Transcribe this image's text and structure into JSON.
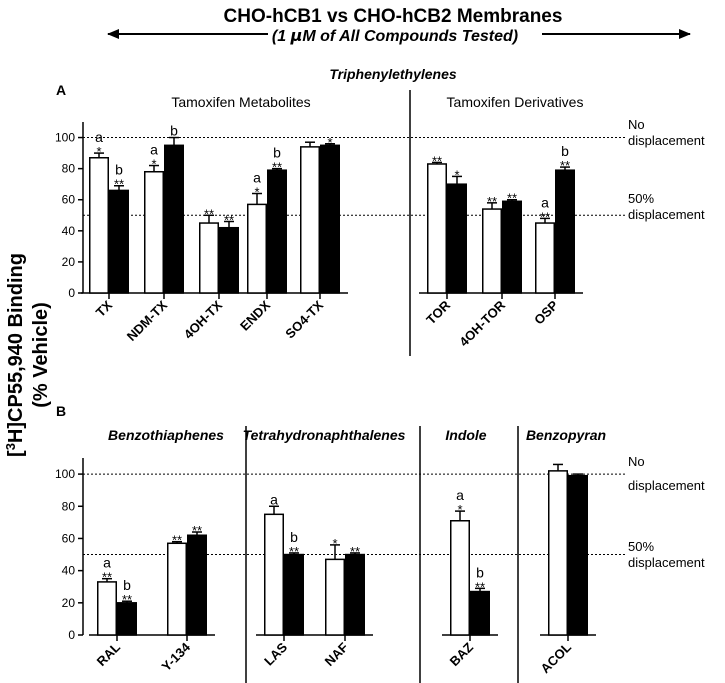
{
  "header": {
    "title": "CHO-hCB1 vs CHO-hCB2 Membranes",
    "subtitle_pre": "(1 ",
    "subtitle_mu": "μ",
    "subtitle_post": "M of All Compounds Tested)"
  },
  "yaxis": {
    "label_superscript": "3",
    "label_line1_pre": "[",
    "label_line1_post": "H]CP55,940 Binding",
    "label_line2": "(% Vehicle)"
  },
  "reference_lines": {
    "no_displacement_1": "No",
    "no_displacement_2": "displacement",
    "half_displacement_1": "50%",
    "half_displacement_2": "displacement"
  },
  "chart_data": [
    {
      "type": "bar",
      "panel_label": "A",
      "title": "Triphenylethylenes",
      "ylim": [
        0,
        110
      ],
      "yticks": [
        "0",
        "20",
        "40",
        "60",
        "80",
        "100"
      ],
      "reference_values": [
        100,
        50
      ],
      "series_styles": [
        "open",
        "filled"
      ],
      "groups": [
        {
          "name": "Tamoxifen Metabolites",
          "categories": [
            {
              "label": "TX",
              "bars": [
                {
                  "value": 87,
                  "error": 3,
                  "sig": "*",
                  "letter": "a"
                },
                {
                  "value": 66,
                  "error": 3,
                  "sig": "**",
                  "letter": "b"
                }
              ]
            },
            {
              "label": "NDM-TX",
              "bars": [
                {
                  "value": 78,
                  "error": 4,
                  "sig": "*",
                  "letter": "a"
                },
                {
                  "value": 95,
                  "error": 5,
                  "sig": "",
                  "letter": "b"
                }
              ]
            },
            {
              "label": "4OH-TX",
              "bars": [
                {
                  "value": 45,
                  "error": 5,
                  "sig": "**",
                  "letter": ""
                },
                {
                  "value": 42,
                  "error": 4,
                  "sig": "**",
                  "letter": ""
                }
              ]
            },
            {
              "label": "ENDX",
              "bars": [
                {
                  "value": 57,
                  "error": 7,
                  "sig": "*",
                  "letter": "a"
                },
                {
                  "value": 79,
                  "error": 1,
                  "sig": "**",
                  "letter": "b"
                }
              ]
            },
            {
              "label": "SO4-TX",
              "bars": [
                {
                  "value": 94,
                  "error": 3,
                  "sig": "",
                  "letter": ""
                },
                {
                  "value": 95,
                  "error": 1,
                  "sig": "*",
                  "letter": ""
                }
              ]
            }
          ]
        },
        {
          "name": "Tamoxifen Derivatives",
          "categories": [
            {
              "label": "TOR",
              "bars": [
                {
                  "value": 83,
                  "error": 1,
                  "sig": "**",
                  "letter": ""
                },
                {
                  "value": 70,
                  "error": 5,
                  "sig": "*",
                  "letter": ""
                }
              ]
            },
            {
              "label": "4OH-TOR",
              "bars": [
                {
                  "value": 54,
                  "error": 4,
                  "sig": "**",
                  "letter": ""
                },
                {
                  "value": 59,
                  "error": 1,
                  "sig": "**",
                  "letter": ""
                }
              ]
            },
            {
              "label": "OSP",
              "bars": [
                {
                  "value": 45,
                  "error": 3,
                  "sig": "**",
                  "letter": "a"
                },
                {
                  "value": 79,
                  "error": 2,
                  "sig": "**",
                  "letter": "b"
                }
              ]
            }
          ]
        }
      ]
    },
    {
      "type": "bar",
      "panel_label": "B",
      "title": "",
      "ylim": [
        0,
        110
      ],
      "yticks": [
        "0",
        "20",
        "40",
        "60",
        "80",
        "100"
      ],
      "reference_values": [
        100,
        50
      ],
      "series_styles": [
        "open",
        "filled"
      ],
      "groups": [
        {
          "name": "Benzothiaphenes",
          "categories": [
            {
              "label": "RAL",
              "bars": [
                {
                  "value": 33,
                  "error": 2,
                  "sig": "**",
                  "letter": "a"
                },
                {
                  "value": 20,
                  "error": 1,
                  "sig": "**",
                  "letter": "b"
                }
              ]
            },
            {
              "label": "Y-134",
              "bars": [
                {
                  "value": 57,
                  "error": 1,
                  "sig": "**",
                  "letter": ""
                },
                {
                  "value": 62,
                  "error": 2,
                  "sig": "**",
                  "letter": ""
                }
              ]
            }
          ]
        },
        {
          "name": "Tetrahydronaphthalenes",
          "categories": [
            {
              "label": "LAS",
              "bars": [
                {
                  "value": 75,
                  "error": 5,
                  "sig": "",
                  "letter": "a"
                },
                {
                  "value": 50,
                  "error": 1,
                  "sig": "**",
                  "letter": "b"
                }
              ]
            },
            {
              "label": "NAF",
              "bars": [
                {
                  "value": 47,
                  "error": 9,
                  "sig": "*",
                  "letter": ""
                },
                {
                  "value": 50,
                  "error": 1,
                  "sig": "**",
                  "letter": ""
                }
              ]
            }
          ]
        },
        {
          "name": "Indole",
          "categories": [
            {
              "label": "BAZ",
              "bars": [
                {
                  "value": 71,
                  "error": 6,
                  "sig": "*",
                  "letter": "a"
                },
                {
                  "value": 27,
                  "error": 2,
                  "sig": "**",
                  "letter": "b"
                }
              ]
            }
          ]
        },
        {
          "name": "Benzopyran",
          "categories": [
            {
              "label": "ACOL",
              "bars": [
                {
                  "value": 102,
                  "error": 4,
                  "sig": "",
                  "letter": ""
                },
                {
                  "value": 99,
                  "error": 1,
                  "sig": "",
                  "letter": ""
                }
              ]
            }
          ]
        }
      ]
    }
  ]
}
